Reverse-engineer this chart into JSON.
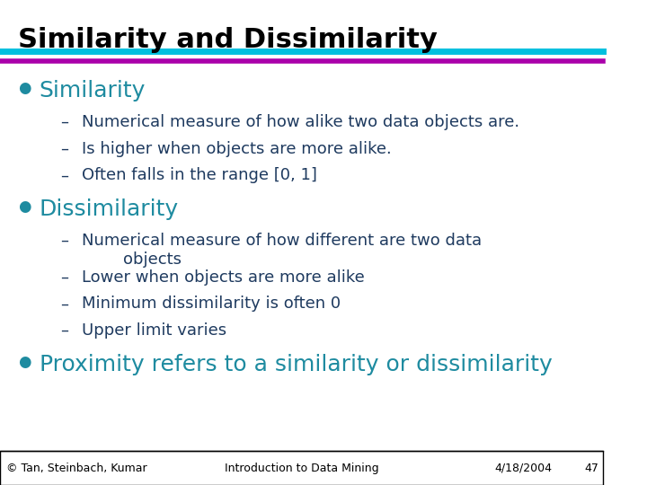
{
  "title": "Similarity and Dissimilarity",
  "title_color": "#000000",
  "title_fontsize": 22,
  "title_bold": true,
  "bg_color": "#ffffff",
  "line1_color": "#00BFDF",
  "line2_color": "#AA00AA",
  "bullet_color": "#1E8BA0",
  "bullet_size": 12,
  "section1_heading": "Similarity",
  "section1_heading_size": 18,
  "section1_items": [
    "Numerical measure of how alike two data objects are.",
    "Is higher when objects are more alike.",
    "Often falls in the range [0, 1]"
  ],
  "section2_heading": "Dissimilarity",
  "section2_heading_size": 18,
  "section2_items": [
    "Numerical measure of how different are two data\n        objects",
    "Lower when objects are more alike",
    "Minimum dissimilarity is often 0",
    "Upper limit varies"
  ],
  "section3_heading": "Proximity refers to a similarity or dissimilarity",
  "section3_heading_size": 18,
  "sub_item_color": "#1E3A5F",
  "sub_item_size": 13,
  "footer_left": "© Tan, Steinbach, Kumar",
  "footer_center": "Introduction to Data Mining",
  "footer_right": "4/18/2004",
  "footer_page": "47",
  "footer_size": 9,
  "footer_color": "#000000",
  "footer_border_color": "#000000"
}
